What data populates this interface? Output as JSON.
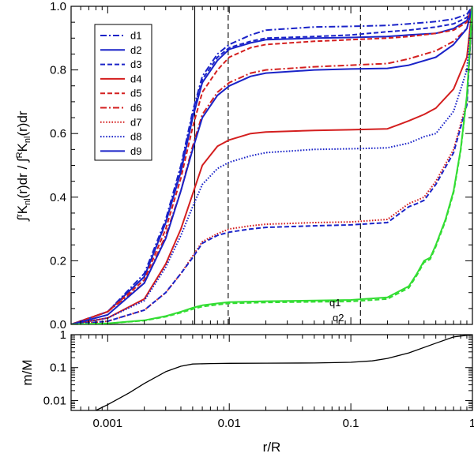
{
  "chart_data": [
    {
      "type": "line",
      "xscale": "log",
      "xlim": [
        0.0005,
        1.0
      ],
      "ylim": [
        0.0,
        1.0
      ],
      "ylabel": "∫^r K_nl(r)dr / ∫^R K_nl(r)dr",
      "ylabel_parts": {
        "int1": "∫",
        "sup1": "r",
        "k1": "K",
        "sub1": "nl",
        "rest1": "(r)dr  /  ∫",
        "sup2": "R",
        "k2": "K",
        "sub2": "nl",
        "rest2": "(r)dr"
      },
      "yticks": [
        0.0,
        0.2,
        0.4,
        0.6,
        0.8,
        1.0
      ],
      "ytick_labels": [
        "0.0",
        "0.2",
        "0.4",
        "0.6",
        "0.8",
        "1.0"
      ],
      "vlines": [
        {
          "x": 0.0052,
          "style": "solid"
        },
        {
          "x": 0.0098,
          "style": "dashed"
        },
        {
          "x": 0.12,
          "style": "dashed"
        }
      ],
      "annotations": [
        {
          "text": "q1",
          "x": 0.09,
          "y": 0.1
        },
        {
          "text": "q2",
          "x": 0.095,
          "y": 0.044
        }
      ],
      "legend": {
        "placement": "top-left"
      },
      "series": [
        {
          "name": "d1",
          "color": "#1a23c8",
          "dash": "dashdot",
          "x": [
            0.0005,
            0.001,
            0.002,
            0.003,
            0.004,
            0.005,
            0.006,
            0.008,
            0.01,
            0.015,
            0.02,
            0.05,
            0.1,
            0.2,
            0.3,
            0.5,
            0.7,
            0.9,
            1.0
          ],
          "y": [
            0.0,
            0.04,
            0.16,
            0.33,
            0.5,
            0.67,
            0.78,
            0.85,
            0.88,
            0.91,
            0.925,
            0.935,
            0.937,
            0.94,
            0.945,
            0.952,
            0.96,
            0.975,
            1.0
          ]
        },
        {
          "name": "d2",
          "color": "#1a23c8",
          "dash": "solid",
          "x": [
            0.0005,
            0.001,
            0.002,
            0.003,
            0.004,
            0.005,
            0.006,
            0.008,
            0.01,
            0.015,
            0.02,
            0.05,
            0.1,
            0.2,
            0.3,
            0.5,
            0.7,
            0.9,
            1.0
          ],
          "y": [
            0.0,
            0.04,
            0.15,
            0.32,
            0.48,
            0.65,
            0.76,
            0.83,
            0.865,
            0.885,
            0.895,
            0.9,
            0.902,
            0.905,
            0.91,
            0.915,
            0.93,
            0.955,
            1.0
          ]
        },
        {
          "name": "d3",
          "color": "#1a23c8",
          "dash": "dashed",
          "x": [
            0.0005,
            0.001,
            0.002,
            0.003,
            0.004,
            0.005,
            0.006,
            0.008,
            0.01,
            0.015,
            0.02,
            0.05,
            0.1,
            0.2,
            0.3,
            0.5,
            0.7,
            0.9,
            1.0
          ],
          "y": [
            0.0,
            0.04,
            0.15,
            0.32,
            0.49,
            0.66,
            0.77,
            0.84,
            0.87,
            0.89,
            0.9,
            0.905,
            0.91,
            0.92,
            0.925,
            0.935,
            0.945,
            0.965,
            1.0
          ]
        },
        {
          "name": "d4",
          "color": "#d41f1f",
          "dash": "solid",
          "x": [
            0.0005,
            0.001,
            0.002,
            0.003,
            0.004,
            0.005,
            0.006,
            0.008,
            0.01,
            0.015,
            0.02,
            0.05,
            0.1,
            0.2,
            0.3,
            0.4,
            0.5,
            0.7,
            0.9,
            1.0
          ],
          "y": [
            0.0,
            0.02,
            0.08,
            0.19,
            0.3,
            0.41,
            0.5,
            0.56,
            0.58,
            0.6,
            0.605,
            0.61,
            0.612,
            0.615,
            0.64,
            0.66,
            0.68,
            0.74,
            0.84,
            1.0
          ]
        },
        {
          "name": "d5",
          "color": "#d41f1f",
          "dash": "dashed",
          "x": [
            0.0005,
            0.001,
            0.002,
            0.003,
            0.004,
            0.005,
            0.006,
            0.008,
            0.01,
            0.015,
            0.02,
            0.05,
            0.1,
            0.2,
            0.3,
            0.5,
            0.7,
            0.9,
            1.0
          ],
          "y": [
            0.0,
            0.04,
            0.14,
            0.3,
            0.46,
            0.62,
            0.73,
            0.8,
            0.84,
            0.87,
            0.88,
            0.89,
            0.895,
            0.9,
            0.905,
            0.915,
            0.925,
            0.95,
            1.0
          ]
        },
        {
          "name": "d6",
          "color": "#d41f1f",
          "dash": "dashdot",
          "x": [
            0.0005,
            0.001,
            0.002,
            0.003,
            0.004,
            0.005,
            0.006,
            0.008,
            0.01,
            0.015,
            0.02,
            0.05,
            0.1,
            0.2,
            0.3,
            0.5,
            0.7,
            0.9,
            1.0
          ],
          "y": [
            0.0,
            0.04,
            0.13,
            0.28,
            0.42,
            0.56,
            0.66,
            0.73,
            0.76,
            0.79,
            0.8,
            0.81,
            0.815,
            0.82,
            0.835,
            0.86,
            0.89,
            0.93,
            1.0
          ]
        },
        {
          "name": "d7",
          "color": "#d41f1f",
          "dash": "dotted",
          "x": [
            0.0005,
            0.001,
            0.002,
            0.003,
            0.004,
            0.005,
            0.006,
            0.008,
            0.01,
            0.015,
            0.02,
            0.05,
            0.1,
            0.2,
            0.3,
            0.35,
            0.4,
            0.5,
            0.7,
            0.9,
            1.0
          ],
          "y": [
            0.0,
            0.01,
            0.045,
            0.1,
            0.16,
            0.215,
            0.26,
            0.285,
            0.3,
            0.31,
            0.315,
            0.32,
            0.322,
            0.33,
            0.38,
            0.39,
            0.4,
            0.45,
            0.55,
            0.7,
            1.0
          ]
        },
        {
          "name": "d8",
          "color": "#1a23c8",
          "dash": "dotted",
          "x": [
            0.0005,
            0.001,
            0.002,
            0.003,
            0.004,
            0.005,
            0.006,
            0.008,
            0.01,
            0.015,
            0.02,
            0.05,
            0.1,
            0.2,
            0.3,
            0.4,
            0.5,
            0.7,
            0.9,
            1.0
          ],
          "y": [
            0.0,
            0.02,
            0.075,
            0.18,
            0.28,
            0.37,
            0.44,
            0.49,
            0.51,
            0.53,
            0.54,
            0.55,
            0.552,
            0.555,
            0.57,
            0.59,
            0.6,
            0.67,
            0.8,
            1.0
          ]
        },
        {
          "name": "d9",
          "color": "#1a23c8",
          "dash": "solid",
          "x": [
            0.0005,
            0.001,
            0.002,
            0.003,
            0.004,
            0.005,
            0.006,
            0.008,
            0.01,
            0.015,
            0.02,
            0.05,
            0.1,
            0.2,
            0.3,
            0.5,
            0.7,
            0.9,
            1.0
          ],
          "y": [
            0.0,
            0.03,
            0.13,
            0.27,
            0.42,
            0.55,
            0.65,
            0.72,
            0.75,
            0.78,
            0.79,
            0.8,
            0.803,
            0.805,
            0.815,
            0.84,
            0.88,
            0.93,
            1.0
          ]
        },
        {
          "name": "d3-lower",
          "color": "#1a23c8",
          "dash": "dashed",
          "legend": false,
          "x": [
            0.0005,
            0.001,
            0.002,
            0.003,
            0.004,
            0.005,
            0.006,
            0.008,
            0.01,
            0.015,
            0.02,
            0.05,
            0.1,
            0.2,
            0.3,
            0.35,
            0.4,
            0.5,
            0.7,
            0.9,
            1.0
          ],
          "y": [
            0.0,
            0.01,
            0.045,
            0.1,
            0.16,
            0.21,
            0.255,
            0.28,
            0.29,
            0.3,
            0.305,
            0.31,
            0.313,
            0.32,
            0.37,
            0.38,
            0.39,
            0.44,
            0.54,
            0.69,
            1.0
          ]
        },
        {
          "name": "q1",
          "color": "#33dd33",
          "dash": "solid",
          "legend": false,
          "x": [
            0.0005,
            0.001,
            0.002,
            0.003,
            0.004,
            0.005,
            0.006,
            0.008,
            0.01,
            0.02,
            0.05,
            0.1,
            0.2,
            0.3,
            0.35,
            0.4,
            0.45,
            0.5,
            0.6,
            0.7,
            0.8,
            0.9,
            1.0
          ],
          "y": [
            0.0,
            0.003,
            0.013,
            0.026,
            0.04,
            0.052,
            0.06,
            0.066,
            0.07,
            0.073,
            0.075,
            0.077,
            0.085,
            0.12,
            0.16,
            0.2,
            0.21,
            0.25,
            0.33,
            0.42,
            0.55,
            0.72,
            1.0
          ]
        },
        {
          "name": "q2",
          "color": "#33dd33",
          "dash": "dashed",
          "legend": false,
          "x": [
            0.0005,
            0.001,
            0.002,
            0.003,
            0.004,
            0.005,
            0.006,
            0.008,
            0.01,
            0.02,
            0.05,
            0.1,
            0.2,
            0.3,
            0.35,
            0.4,
            0.45,
            0.5,
            0.6,
            0.7,
            0.8,
            0.9,
            1.0
          ],
          "y": [
            0.0,
            0.003,
            0.012,
            0.024,
            0.037,
            0.048,
            0.056,
            0.062,
            0.066,
            0.069,
            0.071,
            0.072,
            0.08,
            0.115,
            0.155,
            0.195,
            0.205,
            0.245,
            0.325,
            0.415,
            0.545,
            0.715,
            1.0
          ]
        }
      ]
    },
    {
      "type": "line",
      "xscale": "log",
      "yscale": "log",
      "xlim": [
        0.0005,
        1.0
      ],
      "ylim": [
        0.005,
        1.0
      ],
      "xlabel": "r/R",
      "ylabel": "m/M",
      "yticks": [
        0.01,
        0.1,
        1
      ],
      "ytick_labels": [
        "0.01",
        "0.1",
        "1"
      ],
      "xticks": [
        0.001,
        0.01,
        0.1,
        1
      ],
      "xtick_labels": [
        "0.001",
        "0.01",
        "0.1",
        "1"
      ],
      "series": [
        {
          "name": "m/M",
          "color": "#000000",
          "dash": "solid",
          "x": [
            0.0008,
            0.001,
            0.0015,
            0.002,
            0.003,
            0.004,
            0.005,
            0.007,
            0.01,
            0.02,
            0.05,
            0.1,
            0.15,
            0.2,
            0.3,
            0.5,
            0.7,
            1.0
          ],
          "y": [
            0.005,
            0.0075,
            0.017,
            0.033,
            0.075,
            0.11,
            0.128,
            0.133,
            0.135,
            0.136,
            0.138,
            0.145,
            0.16,
            0.19,
            0.28,
            0.55,
            0.85,
            1.0
          ]
        }
      ]
    }
  ]
}
